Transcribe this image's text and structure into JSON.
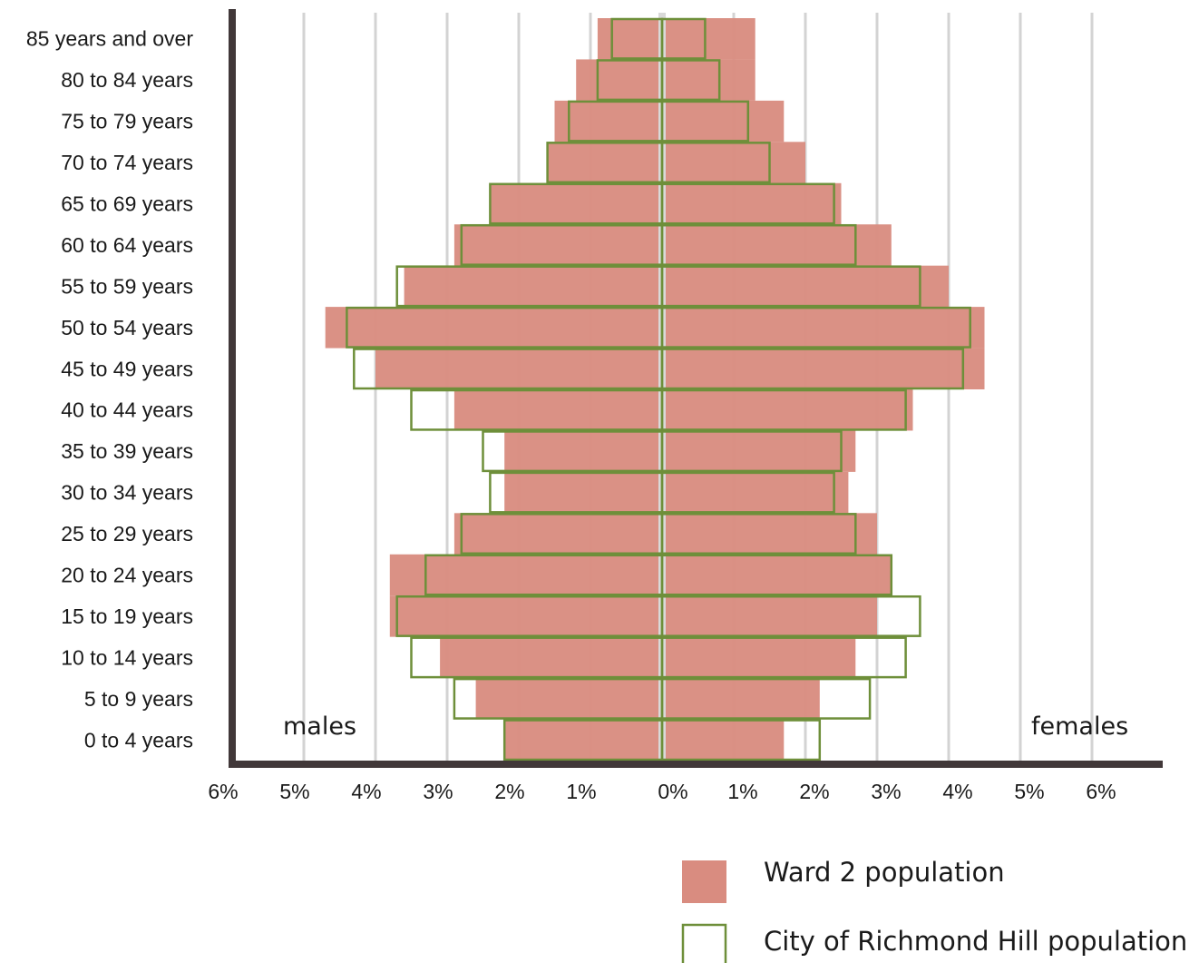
{
  "chart_data": {
    "type": "bar",
    "orientation": "horizontal",
    "layout": "population-pyramid",
    "categories": [
      "0 to 4 years",
      "5 to 9 years",
      "10 to 14 years",
      "15 to 19 years",
      "20 to 24 years",
      "25 to 29 years",
      "30 to 34 years",
      "35 to 39 years",
      "40 to 44 years",
      "45 to 49 years",
      "50 to 54 years",
      "55 to 59 years",
      "60 to 64 years",
      "65 to 69 years",
      "70 to 74 years",
      "75 to 79 years",
      "80 to 84 years",
      "85 years and over"
    ],
    "series": [
      {
        "name": "Ward 2 population",
        "style": "filled",
        "color": "#d98c80",
        "males": [
          2.2,
          2.6,
          3.1,
          3.8,
          3.8,
          2.9,
          2.2,
          2.2,
          2.9,
          4.0,
          4.7,
          3.6,
          2.9,
          2.4,
          1.6,
          1.5,
          1.2,
          0.9
        ],
        "females": [
          1.7,
          2.2,
          2.7,
          3.0,
          3.2,
          3.0,
          2.6,
          2.7,
          3.5,
          4.5,
          4.5,
          4.0,
          3.2,
          2.5,
          2.0,
          1.7,
          1.3,
          1.3
        ]
      },
      {
        "name": "City of Richmond Hill  population",
        "style": "outline",
        "color": "#6e8f3a",
        "males": [
          2.2,
          2.9,
          3.5,
          3.7,
          3.3,
          2.8,
          2.4,
          2.5,
          3.5,
          4.3,
          4.4,
          3.7,
          2.8,
          2.4,
          1.6,
          1.3,
          0.9,
          0.7
        ],
        "females": [
          2.2,
          2.9,
          3.4,
          3.6,
          3.2,
          2.7,
          2.4,
          2.5,
          3.4,
          4.2,
          4.3,
          3.6,
          2.7,
          2.4,
          1.5,
          1.2,
          0.8,
          0.6
        ]
      }
    ],
    "x_ticks_left": [
      "6%",
      "5%",
      "4%",
      "3%",
      "2%",
      "1%"
    ],
    "x_tick_center": "0%",
    "x_ticks_right": [
      "1%",
      "2%",
      "3%",
      "4%",
      "5%",
      "6%"
    ],
    "xlim": [
      -6,
      6
    ],
    "side_labels": {
      "left": "males",
      "right": "females"
    },
    "grid": true,
    "legend_position": "bottom-right",
    "colors": {
      "axis": "#413839",
      "grid": "#d3d3d3",
      "center_line": "#d9d9d9"
    }
  }
}
